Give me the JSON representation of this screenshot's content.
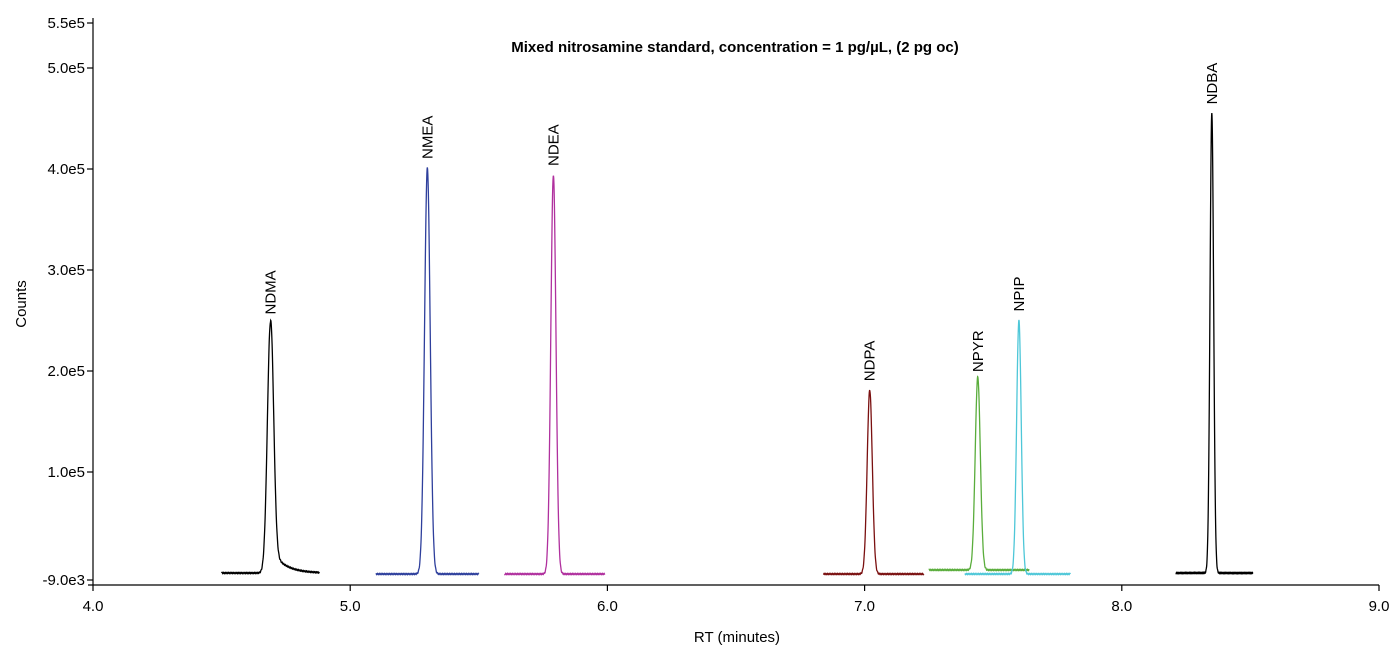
{
  "chart_data": {
    "type": "line",
    "title": "Mixed nitrosamine standard, concentration = 1 pg/µL, (2 pg oc)",
    "xlabel": "RT (minutes)",
    "ylabel": "Counts",
    "xlim": [
      4.0,
      9.0
    ],
    "ylim": [
      -9000,
      550000
    ],
    "xticks": [
      4.0,
      5.0,
      6.0,
      7.0,
      8.0,
      9.0
    ],
    "xtick_labels": [
      "4.0",
      "5.0",
      "6.0",
      "7.0",
      "8.0",
      "9.0"
    ],
    "yticks": [
      -9000,
      100000,
      200000,
      300000,
      400000,
      500000,
      550000
    ],
    "ytick_labels": [
      "-9.0e3",
      "1.0e5",
      "2.0e5",
      "3.0e5",
      "4.0e5",
      "5.0e5",
      "5.5e5"
    ],
    "grid": false,
    "series": [
      {
        "name": "NDMA",
        "color": "#000000",
        "rt": 4.69,
        "apex": 248000,
        "sigma": 0.012,
        "tail": 0.05,
        "start": 4.5,
        "end": 4.88,
        "baseline": 0
      },
      {
        "name": "NMEA",
        "color": "#2e3f9c",
        "rt": 5.3,
        "apex": 402000,
        "sigma": 0.011,
        "tail": 0.0,
        "start": 5.1,
        "end": 5.5,
        "baseline": -1000
      },
      {
        "name": "NDEA",
        "color": "#b0309e",
        "rt": 5.79,
        "apex": 395000,
        "sigma": 0.01,
        "tail": 0.0,
        "start": 5.6,
        "end": 5.99,
        "baseline": -1000
      },
      {
        "name": "NDPA",
        "color": "#7a1010",
        "rt": 7.02,
        "apex": 182000,
        "sigma": 0.01,
        "tail": 0.0,
        "start": 6.84,
        "end": 7.23,
        "baseline": -1000
      },
      {
        "name": "NPYR",
        "color": "#5aad3c",
        "rt": 7.44,
        "apex": 191000,
        "sigma": 0.01,
        "tail": 0.0,
        "start": 7.25,
        "end": 7.64,
        "baseline": 3000
      },
      {
        "name": "NPIP",
        "color": "#4ec7d8",
        "rt": 7.6,
        "apex": 251000,
        "sigma": 0.009,
        "tail": 0.0,
        "start": 7.39,
        "end": 7.8,
        "baseline": -1000
      },
      {
        "name": "NDBA",
        "color": "#000000",
        "rt": 8.35,
        "apex": 456000,
        "sigma": 0.007,
        "tail": 0.0,
        "start": 8.21,
        "end": 8.51,
        "baseline": 0
      }
    ]
  }
}
